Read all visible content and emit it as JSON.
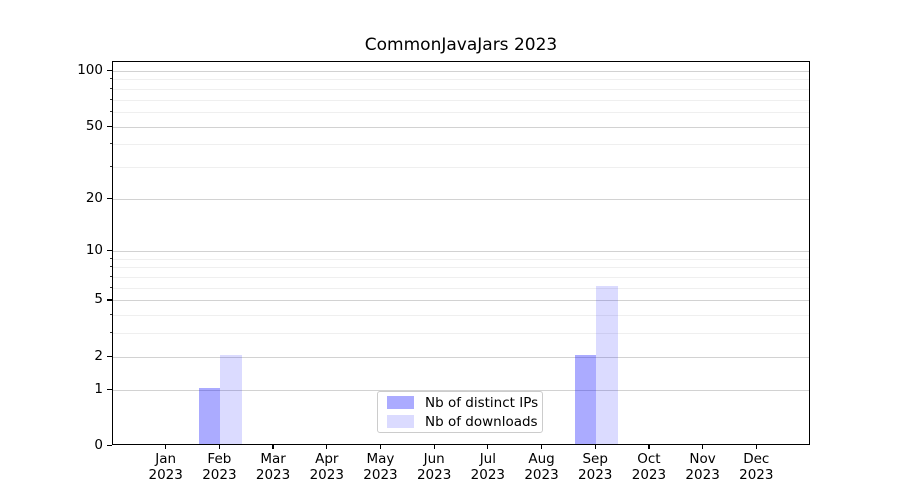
{
  "figure": {
    "background": "#ffffff",
    "spine_color": "#000000"
  },
  "chart_data": {
    "type": "bar",
    "title": "CommonJavaJars 2023",
    "xlabel": "",
    "ylabel": "",
    "categories": [
      "Jan 2023",
      "Feb 2023",
      "Mar 2023",
      "Apr 2023",
      "May 2023",
      "Jun 2023",
      "Jul 2023",
      "Aug 2023",
      "Sep 2023",
      "Oct 2023",
      "Nov 2023",
      "Dec 2023"
    ],
    "series": [
      {
        "name": "Nb of distinct IPs",
        "values": [
          0,
          1,
          0,
          0,
          0,
          0,
          0,
          0,
          2,
          0,
          0,
          0
        ],
        "color": "rgba(0,0,255,0.33)",
        "color_on_white": "#ababff"
      },
      {
        "name": "Nb of downloads",
        "values": [
          0,
          2,
          0,
          0,
          0,
          0,
          0,
          0,
          6,
          0,
          0,
          0
        ],
        "color": "rgba(0,0,255,0.14)",
        "color_on_white": "#dbdbff"
      }
    ],
    "yscale": "log1p",
    "yticks": [
      0,
      1,
      2,
      5,
      10,
      20,
      50,
      100
    ],
    "minor_yticks": [
      3,
      4,
      6,
      7,
      8,
      9,
      30,
      40,
      60,
      70,
      80,
      90
    ],
    "ylim": [
      0,
      111.8
    ],
    "grid": "on",
    "grid_major_color": "#d2d2d2",
    "grid_minor_color": "#efefef",
    "legend_position": "lower center"
  }
}
